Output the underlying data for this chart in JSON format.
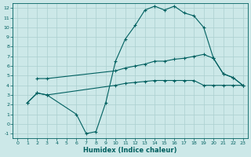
{
  "xlabel": "Humidex (Indice chaleur)",
  "xlim": [
    -0.5,
    23.5
  ],
  "ylim": [
    -1.5,
    12.5
  ],
  "xticks": [
    0,
    1,
    2,
    3,
    4,
    5,
    6,
    7,
    8,
    9,
    10,
    11,
    12,
    13,
    14,
    15,
    16,
    17,
    18,
    19,
    20,
    21,
    22,
    23
  ],
  "yticks": [
    -1,
    0,
    1,
    2,
    3,
    4,
    5,
    6,
    7,
    8,
    9,
    10,
    11,
    12
  ],
  "background_color": "#cce8e8",
  "grid_color": "#aacfcf",
  "line_color": "#006060",
  "line1_x": [
    1,
    2,
    3,
    6,
    7,
    8,
    9,
    10,
    11,
    12,
    13,
    14,
    15,
    16,
    17,
    18,
    19,
    20,
    21,
    22,
    23
  ],
  "line1_y": [
    2.2,
    3.2,
    3.0,
    1.0,
    -1.0,
    -0.8,
    2.2,
    6.5,
    8.8,
    10.2,
    11.8,
    12.2,
    11.8,
    12.2,
    11.5,
    11.2,
    10.0,
    6.8,
    5.2,
    4.8,
    4.0
  ],
  "line2_x": [
    2,
    3,
    10,
    11,
    12,
    13,
    14,
    15,
    16,
    17,
    18,
    19,
    20,
    21,
    22,
    23
  ],
  "line2_y": [
    4.7,
    4.7,
    5.5,
    5.8,
    6.0,
    6.2,
    6.5,
    6.5,
    6.7,
    6.8,
    7.0,
    7.2,
    6.8,
    5.2,
    4.8,
    4.0
  ],
  "line3_x": [
    1,
    2,
    3,
    10,
    11,
    12,
    13,
    14,
    15,
    16,
    17,
    18,
    19,
    20,
    21,
    22,
    23
  ],
  "line3_y": [
    2.2,
    3.2,
    3.0,
    4.0,
    4.2,
    4.3,
    4.4,
    4.5,
    4.5,
    4.5,
    4.5,
    4.5,
    4.0,
    4.0,
    4.0,
    4.0,
    4.0
  ]
}
